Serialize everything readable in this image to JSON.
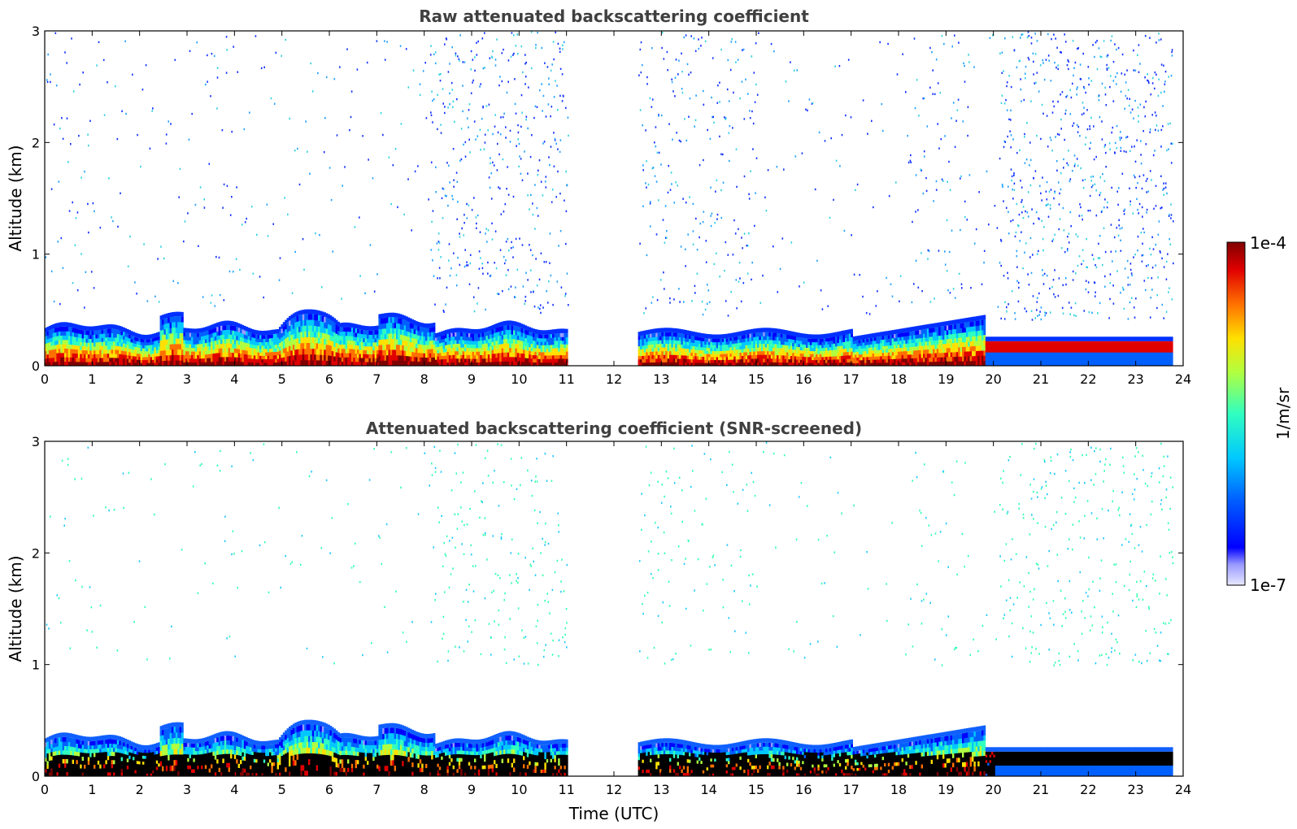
{
  "chart_data": [
    {
      "type": "heatmap",
      "title": "Raw attenuated backscattering coefficient",
      "xlabel": "",
      "ylabel": "Altitude (km)",
      "xlim": [
        0,
        24
      ],
      "ylim": [
        0,
        3
      ],
      "x_ticks": [
        "0",
        "1",
        "2",
        "3",
        "4",
        "5",
        "6",
        "7",
        "8",
        "9",
        "10",
        "11",
        "12",
        "13",
        "14",
        "15",
        "16",
        "17",
        "18",
        "19",
        "20",
        "21",
        "22",
        "23",
        "24"
      ],
      "y_ticks": [
        "0",
        "1",
        "2",
        "3"
      ],
      "data_gap": [
        11.0,
        12.5
      ],
      "features": [
        {
          "kind": "dense_boundary_layer",
          "x": [
            0,
            20
          ],
          "top_km": 0.6,
          "color": "#d01010"
        },
        {
          "kind": "sparse_noise",
          "x": [
            0,
            24
          ],
          "altitude_km": [
            0.5,
            3
          ],
          "color": "#3a6bff"
        },
        {
          "kind": "stable_layer",
          "x": [
            20,
            24
          ],
          "altitude_km": [
            0.1,
            0.2
          ],
          "color": "#ff2020"
        }
      ]
    },
    {
      "type": "heatmap",
      "title": "Attenuated backscattering coefficient (SNR-screened)",
      "xlabel": "Time (UTC)",
      "ylabel": "Altitude (km)",
      "xlim": [
        0,
        24
      ],
      "ylim": [
        0,
        3
      ],
      "x_ticks": [
        "0",
        "1",
        "2",
        "3",
        "4",
        "5",
        "6",
        "7",
        "8",
        "9",
        "10",
        "11",
        "12",
        "13",
        "14",
        "15",
        "16",
        "17",
        "18",
        "19",
        "20",
        "21",
        "22",
        "23",
        "24"
      ],
      "y_ticks": [
        "0",
        "1",
        "2",
        "3"
      ],
      "data_gap": [
        11.0,
        12.5
      ],
      "features": [
        {
          "kind": "dense_boundary_layer",
          "x": [
            0,
            20
          ],
          "top_km": 0.6,
          "color": "#e02010"
        },
        {
          "kind": "saturated_core",
          "x": [
            0,
            24
          ],
          "altitude_km": [
            0,
            0.2
          ],
          "color": "#000000"
        },
        {
          "kind": "sparse_noise",
          "x": [
            0,
            24
          ],
          "altitude_km": [
            1,
            3
          ],
          "color": "#40e0c0"
        }
      ]
    }
  ],
  "colorbar": {
    "label": "1/m/sr",
    "max_label": "1e-4",
    "min_label": "1e-7",
    "colormap": "jet"
  }
}
